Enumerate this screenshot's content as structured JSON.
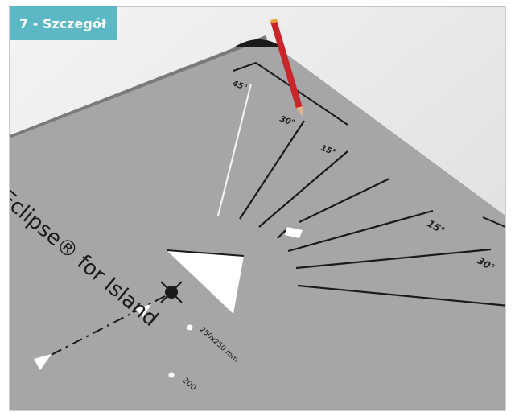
{
  "label": "7 - Szczegół",
  "angle_labels": [
    "45°",
    "30°",
    "15°",
    "15°",
    "30°"
  ],
  "brand": "Eclipse® for Island",
  "size_label": "250x250 mm",
  "second_size_label": "200"
}
